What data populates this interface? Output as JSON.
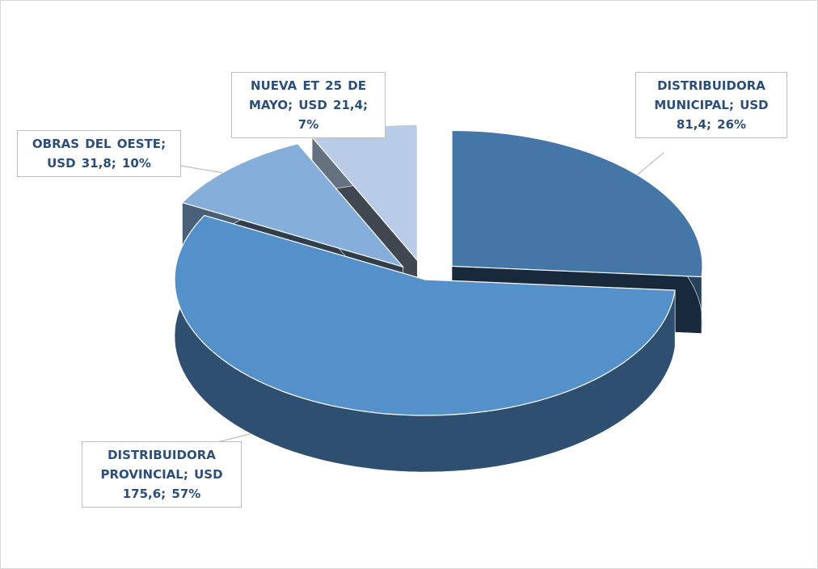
{
  "chart_data": {
    "type": "pie3d",
    "categories": [
      "DISTRIBUIDORA MUNICIPAL",
      "DISTRIBUIDORA PROVINCIAL",
      "OBRAS DEL OESTE",
      "NUEVA ET 25 DE MAYO"
    ],
    "values": [
      81.4,
      175.6,
      31.8,
      21.4
    ],
    "value_labels": [
      "USD 81,4",
      "USD 175,6",
      "USD 31,8",
      "USD 21,4"
    ],
    "percents": [
      26,
      57,
      10,
      7
    ],
    "percent_labels": [
      "26%",
      "57%",
      "10%",
      "7%"
    ],
    "label_separator": ";",
    "colors": [
      "#4576a8",
      "#5490c9",
      "#86aedb",
      "#b8cce8"
    ]
  }
}
